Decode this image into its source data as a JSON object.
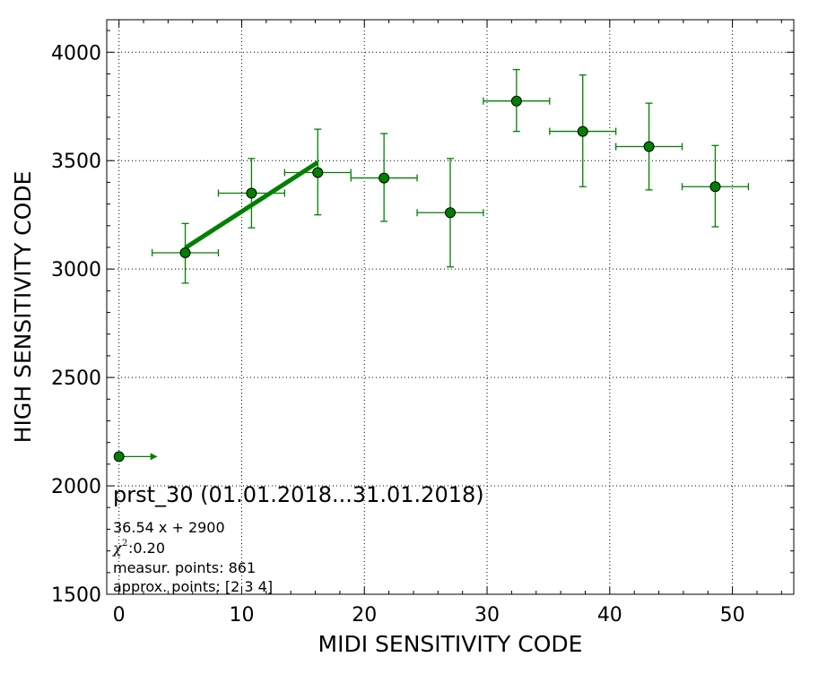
{
  "chart_data": {
    "type": "scatter",
    "xlabel": "MIDI SENSITIVITY CODE",
    "ylabel": "HIGH SENSITIVITY CODE",
    "xlim": [
      -1,
      55
    ],
    "ylim": [
      1500,
      4150
    ],
    "x_ticks": [
      0,
      10,
      20,
      30,
      40,
      50
    ],
    "y_ticks": [
      1500,
      2000,
      2500,
      3000,
      3500,
      4000
    ],
    "grid": true,
    "colors": {
      "series": "#008000",
      "fit": "#008000",
      "marker_edge": "#000000",
      "grid": "#000000"
    },
    "points": [
      {
        "x": 5.4,
        "y": 3075,
        "xerr": 2.7,
        "yerr_low": 140,
        "yerr_high": 135
      },
      {
        "x": 10.8,
        "y": 3350,
        "xerr": 2.7,
        "yerr_low": 160,
        "yerr_high": 160
      },
      {
        "x": 16.2,
        "y": 3445,
        "xerr": 2.7,
        "yerr_low": 195,
        "yerr_high": 200
      },
      {
        "x": 21.6,
        "y": 3420,
        "xerr": 2.7,
        "yerr_low": 200,
        "yerr_high": 205
      },
      {
        "x": 27.0,
        "y": 3260,
        "xerr": 2.7,
        "yerr_low": 250,
        "yerr_high": 250
      },
      {
        "x": 32.4,
        "y": 3775,
        "xerr": 2.7,
        "yerr_low": 140,
        "yerr_high": 145
      },
      {
        "x": 37.8,
        "y": 3635,
        "xerr": 2.7,
        "yerr_low": 255,
        "yerr_high": 260
      },
      {
        "x": 43.2,
        "y": 3565,
        "xerr": 2.7,
        "yerr_low": 200,
        "yerr_high": 200
      },
      {
        "x": 48.6,
        "y": 3380,
        "xerr": 2.7,
        "yerr_low": 185,
        "yerr_high": 190
      }
    ],
    "outlier_point": {
      "x": 0,
      "y": 2135,
      "xerr_high": 2.7
    },
    "fit_line": {
      "slope": 36.54,
      "intercept": 2900,
      "x_range": [
        5.4,
        16.2
      ]
    },
    "annotations": {
      "title": "prst_30 (01.01.2018...31.01.2018)",
      "equation": "36.54 x + 2900",
      "chi_symbol": "χ",
      "chi_exponent": "2",
      "chi_value": " :0.20",
      "measurement_points": "measur. points: 861",
      "approx_points": "approx. points: [2 3 4]"
    }
  }
}
